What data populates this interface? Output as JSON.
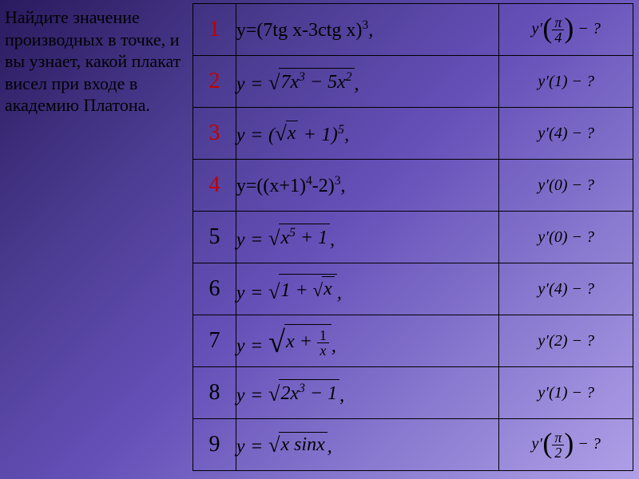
{
  "instruction": "Найдите значение производных в точке, и вы узнает, какой плакат висел при входе в академию Платона.",
  "rows": [
    {
      "n": "1",
      "red": true,
      "formula_html": "y=(7tg x-3ctg x)<sup>3</sup>,",
      "question_html": "<span class='math'>y′</span><span class='bigparen'>(</span><span class='frac'><span class='top'><i>π</i></span><span class='bot'>4</span></span><span class='bigparen'>)</span> − ?"
    },
    {
      "n": "2",
      "red": true,
      "formula_html": "<span class='math'>y = </span><span class='sqrt'><span class='rad'>√</span><span class='vinculum'>7<i>x</i><sup>3</sup> − 5<i>x</i><sup>2</sup></span></span><span class='math'>,</span>",
      "question_html": "<span class='math'>y′</span>(1) − ?"
    },
    {
      "n": "3",
      "red": true,
      "formula_html": "<span class='math'>y = (</span><span class='sqrt'><span class='rad'>√</span><span class='vinculum'><i>x</i></span></span><span class='math'> + 1)<sup>5</sup>,</span>",
      "question_html": "<span class='math'>y′</span>(4) − ?"
    },
    {
      "n": "4",
      "red": true,
      "formula_html": "y=((x+1)<sup>4</sup>-2)<sup>3</sup>,",
      "question_html": "<span class='math'>y′</span>(0) − ?"
    },
    {
      "n": "5",
      "red": false,
      "formula_html": "<span class='math'>y = </span><span class='sqrt'><span class='rad'>√</span><span class='vinculum'><i>x</i><sup>5</sup> + 1</span></span><span class='math'>,</span>",
      "question_html": "<span class='math'>y′</span>(0) − ?"
    },
    {
      "n": "6",
      "red": false,
      "formula_html": "<span class='math'>y = </span><span class='sqrt'><span class='rad'>√</span><span class='vinculum'>1 + <span class='sqrt sqrt-inner'><span class='rad'>√</span><span class='vinculum'><i>x</i></span></span></span></span><span class='math'>,</span>",
      "question_html": "<span class='math'>y′</span>(4) − ?"
    },
    {
      "n": "7",
      "red": false,
      "formula_html": "<span class='math'>y = </span><span class='sqrt'><span class='rad' style='font-size:1.6em'>√</span><span class='vinculum' style='padding-top:4px'><i>x</i> + <span class='frac'><span class='top' style='font-style:normal'>1</span><span class='bot'><i>x</i></span></span></span></span><span class='math'>,</span>",
      "question_html": "<span class='math'>y′</span>(2) − ?"
    },
    {
      "n": "8",
      "red": false,
      "formula_html": "<span class='math'>y = </span><span class='sqrt'><span class='rad'>√</span><span class='vinculum'>2<i>x</i><sup>3</sup> − 1</span></span><span class='math'>,</span>",
      "question_html": "<span class='math'>y′</span>(1) − ?"
    },
    {
      "n": "9",
      "red": false,
      "formula_html": "<span class='math'>y = </span><span class='sqrt'><span class='rad'>√</span><span class='vinculum'><i>x</i> sin<i>x</i></span></span><span class='math'>,</span>",
      "question_html": "<span class='math'>y′</span><span class='bigparen'>(</span><span class='frac'><span class='top'><i>π</i></span><span class='bot'>2</span></span><span class='bigparen'>)</span> − ?"
    }
  ],
  "colors": {
    "red": "#c00000",
    "border": "#000000"
  },
  "fonts": {
    "instruction_size": 22,
    "number_size": 28,
    "formula_size": 24,
    "question_size": 20
  }
}
